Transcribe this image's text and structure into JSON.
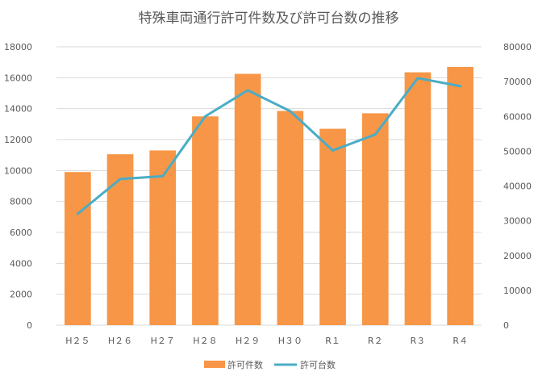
{
  "chart_data": {
    "type": "bar",
    "title": "特殊車両通行許可件数及び許可台数の推移",
    "categories": [
      "H２５",
      "H２６",
      "H２７",
      "H２８",
      "H２９",
      "H３０",
      "R１",
      "R２",
      "R３",
      "R４"
    ],
    "series": [
      {
        "name": "許可件数",
        "type": "bar",
        "axis": "left",
        "color": "#F79646",
        "values": [
          9900,
          11050,
          11300,
          13500,
          16250,
          13850,
          12700,
          13700,
          16350,
          16700
        ]
      },
      {
        "name": "許可台数",
        "type": "line",
        "axis": "right",
        "color": "#4BACC6",
        "values": [
          32000,
          42000,
          42800,
          60000,
          67500,
          61500,
          50200,
          54800,
          71000,
          68700
        ]
      }
    ],
    "y_left": {
      "min": 0,
      "max": 18000,
      "ticks": [
        "0",
        "2000",
        "4000",
        "6000",
        "8000",
        "10000",
        "12000",
        "14000",
        "16000",
        "18000"
      ]
    },
    "y_right": {
      "min": 0,
      "max": 80000,
      "ticks": [
        "0",
        "10000",
        "20000",
        "30000",
        "40000",
        "50000",
        "60000",
        "70000",
        "80000"
      ]
    },
    "grid": true,
    "legend": "bottom"
  }
}
